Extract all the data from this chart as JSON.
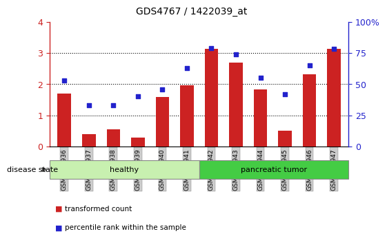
{
  "title": "GDS4767 / 1422039_at",
  "samples": [
    "GSM1159936",
    "GSM1159937",
    "GSM1159938",
    "GSM1159939",
    "GSM1159940",
    "GSM1159941",
    "GSM1159942",
    "GSM1159943",
    "GSM1159944",
    "GSM1159945",
    "GSM1159946",
    "GSM1159947"
  ],
  "transformed_count": [
    1.7,
    0.4,
    0.55,
    0.28,
    1.58,
    1.97,
    3.12,
    2.68,
    1.82,
    0.5,
    2.32,
    3.12
  ],
  "percentile_rank": [
    53,
    33,
    33,
    40,
    46,
    63,
    79,
    74,
    55,
    42,
    65,
    78
  ],
  "bar_color": "#cc2222",
  "dot_color": "#2222cc",
  "ylim_left": [
    0,
    4
  ],
  "ylim_right": [
    0,
    100
  ],
  "yticks_left": [
    0,
    1,
    2,
    3,
    4
  ],
  "yticks_right": [
    0,
    25,
    50,
    75,
    100
  ],
  "yticklabels_right": [
    "0",
    "25",
    "50",
    "75",
    "100%"
  ],
  "healthy_color_light": "#c8f0b0",
  "healthy_color": "#88dd66",
  "tumor_color": "#44cc44",
  "tick_bg_color": "#cccccc",
  "grid_linestyle": "dotted",
  "legend_items": [
    {
      "label": "transformed count",
      "color": "#cc2222"
    },
    {
      "label": "percentile rank within the sample",
      "color": "#2222cc"
    }
  ],
  "disease_state_label": "disease state"
}
